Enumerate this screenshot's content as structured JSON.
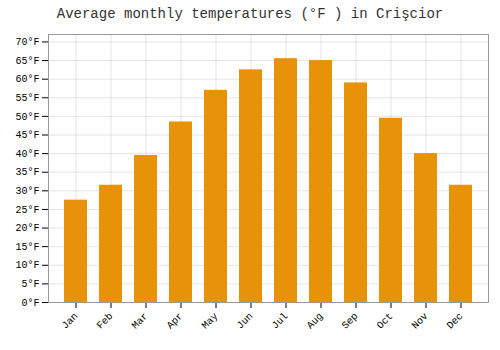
{
  "chart_data": {
    "type": "bar",
    "title": "Average monthly temperatures (°F ) in Crişcior",
    "categories": [
      "Jan",
      "Feb",
      "Mar",
      "Apr",
      "May",
      "Jun",
      "Jul",
      "Aug",
      "Sep",
      "Oct",
      "Nov",
      "Dec"
    ],
    "values": [
      27.5,
      31.5,
      39.5,
      48.5,
      57.0,
      62.5,
      65.5,
      65.0,
      59.0,
      49.5,
      40.0,
      31.5
    ],
    "color": "#E8920A",
    "ylim": [
      0,
      72
    ],
    "yticks": [
      {
        "value": 0,
        "label": "0°F"
      },
      {
        "value": 5,
        "label": "5°F"
      },
      {
        "value": 10,
        "label": "10°F"
      },
      {
        "value": 15,
        "label": "15°F"
      },
      {
        "value": 20,
        "label": "20°F"
      },
      {
        "value": 25,
        "label": "25°F"
      },
      {
        "value": 30,
        "label": "30°F"
      },
      {
        "value": 35,
        "label": "35°F"
      },
      {
        "value": 40,
        "label": "40°F"
      },
      {
        "value": 45,
        "label": "45°F"
      },
      {
        "value": 50,
        "label": "50°F"
      },
      {
        "value": 55,
        "label": "55°F"
      },
      {
        "value": 60,
        "label": "60°F"
      },
      {
        "value": 65,
        "label": "65°F"
      },
      {
        "value": 70,
        "label": "70°F"
      }
    ],
    "grid": true
  }
}
